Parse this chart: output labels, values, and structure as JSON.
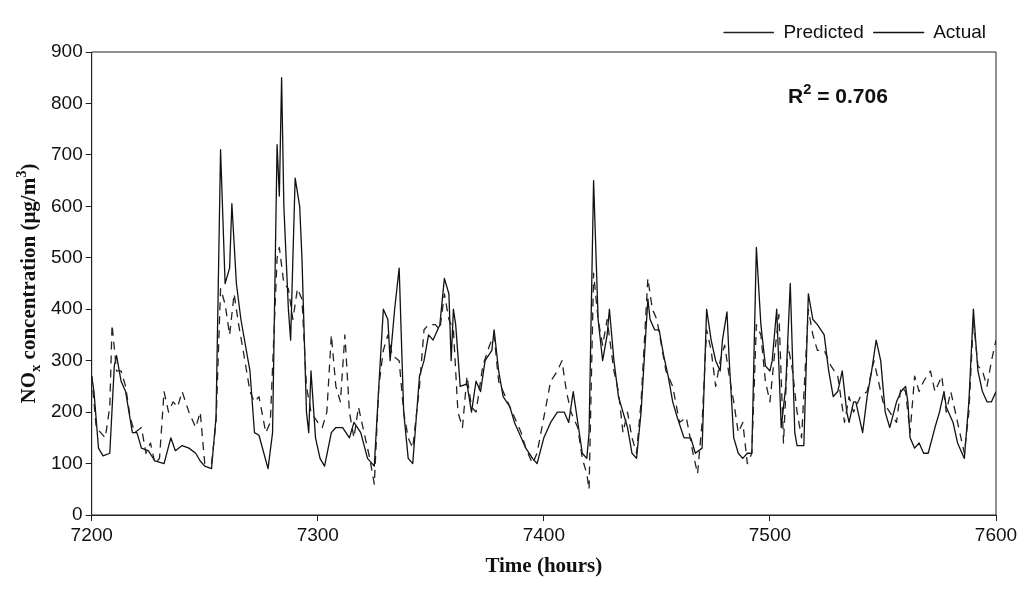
{
  "chart_data": {
    "type": "line",
    "xlabel": "Time (hours)",
    "ylabel": "NO$_{x}$ concentration (μg/m$^{3}$)",
    "xlim": [
      7200,
      7600
    ],
    "xticks": [
      7200,
      7300,
      7400,
      7500,
      7600
    ],
    "ylim": [
      0,
      900
    ],
    "yticks": [
      0,
      100,
      200,
      300,
      400,
      500,
      600,
      700,
      800,
      900
    ],
    "grid": false,
    "legend": "top right",
    "annotations": [
      "R$^{2}$ = 0.706"
    ],
    "series": [
      {
        "name": "Predicted",
        "color": "#222222",
        "line_style": "dashed",
        "x": [
          7200,
          7202,
          7204,
          7206,
          7208,
          7209,
          7211,
          7213,
          7215,
          7217,
          7219,
          7222,
          7224,
          7226,
          7228,
          7230,
          7232,
          7234,
          7236,
          7238,
          7240,
          7243,
          7246,
          7248,
          7250,
          7253,
          7255,
          7257,
          7259,
          7261,
          7263,
          7265,
          7267,
          7270,
          7272,
          7274,
          7277,
          7279,
          7282,
          7283,
          7285,
          7287,
          7289,
          7291,
          7293,
          7295,
          7297,
          7300,
          7302,
          7304,
          7306,
          7308,
          7310,
          7312,
          7314,
          7316,
          7318,
          7320,
          7323,
          7325,
          7327,
          7329,
          7331,
          7333,
          7336,
          7338,
          7340,
          7342,
          7345,
          7347,
          7349,
          7352,
          7354,
          7356,
          7358,
          7360,
          7362,
          7364,
          7366,
          7368,
          7370,
          7373,
          7376,
          7378,
          7380,
          7383,
          7386,
          7388,
          7390,
          7392,
          7395,
          7397,
          7400,
          7403,
          7406,
          7408,
          7410,
          7412,
          7415,
          7417,
          7419,
          7420,
          7422,
          7424,
          7426,
          7428,
          7431,
          7433,
          7435,
          7437,
          7439,
          7441,
          7443,
          7446,
          7448,
          7450,
          7452,
          7454,
          7457,
          7460,
          7463,
          7466,
          7468,
          7470,
          7472,
          7474,
          7476,
          7478,
          7480,
          7482,
          7484,
          7486,
          7488,
          7490,
          7492,
          7494,
          7496,
          7498,
          7500,
          7502,
          7504,
          7506,
          7508,
          7510,
          7512,
          7514,
          7517,
          7519,
          7521,
          7524,
          7527,
          7530,
          7533,
          7535,
          7537,
          7540,
          7543,
          7546,
          7548,
          7550,
          7553,
          7556,
          7558,
          7560,
          7562,
          7564,
          7566,
          7568,
          7571,
          7573,
          7576,
          7578,
          7580,
          7583,
          7586,
          7588,
          7590,
          7592,
          7594,
          7596,
          7598,
          7600
        ],
        "values": [
          270,
          170,
          160,
          150,
          210,
          370,
          280,
          280,
          250,
          190,
          160,
          170,
          120,
          140,
          100,
          110,
          240,
          200,
          220,
          210,
          240,
          200,
          170,
          200,
          100,
          100,
          180,
          440,
          410,
          350,
          430,
          370,
          320,
          240,
          220,
          230,
          160,
          180,
          500,
          520,
          450,
          440,
          380,
          440,
          420,
          250,
          200,
          180,
          170,
          200,
          350,
          250,
          220,
          350,
          200,
          150,
          210,
          170,
          110,
          60,
          250,
          320,
          350,
          310,
          300,
          200,
          150,
          130,
          250,
          360,
          370,
          370,
          360,
          430,
          380,
          360,
          200,
          170,
          270,
          210,
          200,
          290,
          330,
          350,
          260,
          230,
          200,
          180,
          160,
          130,
          100,
          120,
          190,
          260,
          280,
          300,
          240,
          200,
          170,
          110,
          80,
          50,
          470,
          380,
          330,
          380,
          280,
          240,
          160,
          200,
          150,
          120,
          220,
          460,
          400,
          380,
          330,
          280,
          250,
          180,
          190,
          120,
          80,
          180,
          360,
          320,
          250,
          300,
          330,
          270,
          220,
          160,
          180,
          100,
          120,
          370,
          350,
          260,
          220,
          310,
          390,
          140,
          330,
          280,
          200,
          150,
          400,
          350,
          320,
          320,
          290,
          270,
          180,
          230,
          200,
          230,
          240,
          300,
          260,
          220,
          200,
          180,
          250,
          240,
          160,
          270,
          240,
          260,
          280,
          240,
          270,
          200,
          240,
          180,
          120,
          200,
          380,
          290,
          280,
          250,
          300,
          340
        ]
      },
      {
        "name": "Actual",
        "color": "#111111",
        "line_style": "solid",
        "x": [
          7200,
          7201,
          7203,
          7205,
          7208,
          7210,
          7211,
          7213,
          7215,
          7218,
          7220,
          7222,
          7225,
          7228,
          7232,
          7235,
          7237,
          7240,
          7243,
          7246,
          7248,
          7250,
          7253,
          7255,
          7257,
          7259,
          7261,
          7262,
          7264,
          7266,
          7270,
          7272,
          7274,
          7278,
          7280,
          7282,
          7283,
          7284,
          7285,
          7287,
          7288,
          7289,
          7290,
          7292,
          7293,
          7295,
          7296,
          7297,
          7299,
          7301,
          7303,
          7306,
          7308,
          7311,
          7314,
          7316,
          7319,
          7322,
          7325,
          7327,
          7329,
          7331,
          7332,
          7334,
          7336,
          7338,
          7340,
          7342,
          7345,
          7347,
          7349,
          7351,
          7354,
          7356,
          7358,
          7359,
          7360,
          7361,
          7363,
          7366,
          7368,
          7370,
          7372,
          7374,
          7377,
          7378,
          7380,
          7382,
          7385,
          7387,
          7390,
          7392,
          7395,
          7397,
          7400,
          7403,
          7406,
          7409,
          7411,
          7413,
          7415,
          7417,
          7419,
          7420,
          7422,
          7424,
          7426,
          7428,
          7429,
          7431,
          7433,
          7435,
          7437,
          7439,
          7441,
          7443,
          7446,
          7447,
          7449,
          7451,
          7453,
          7455,
          7457,
          7459,
          7462,
          7465,
          7467,
          7470,
          7472,
          7474,
          7476,
          7478,
          7479,
          7481,
          7482,
          7484,
          7486,
          7488,
          7490,
          7492,
          7494,
          7496,
          7498,
          7500,
          7501,
          7503,
          7505,
          7507,
          7509,
          7511,
          7512,
          7515,
          7517,
          7519,
          7521,
          7524,
          7526,
          7528,
          7530,
          7532,
          7534,
          7535,
          7537,
          7538,
          7541,
          7543,
          7545,
          7547,
          7549,
          7551,
          7553,
          7556,
          7558,
          7560,
          7561,
          7562,
          7564,
          7566,
          7568,
          7570,
          7573,
          7575,
          7577,
          7578,
          7581,
          7583,
          7586,
          7588,
          7590,
          7592,
          7594,
          7596,
          7598,
          7600
        ],
        "values": [
          270,
          240,
          130,
          115,
          120,
          290,
          310,
          260,
          240,
          160,
          160,
          130,
          125,
          105,
          100,
          150,
          125,
          135,
          130,
          120,
          105,
          95,
          90,
          190,
          710,
          450,
          480,
          605,
          450,
          380,
          280,
          160,
          155,
          90,
          160,
          720,
          620,
          850,
          600,
          400,
          340,
          500,
          655,
          600,
          500,
          200,
          160,
          280,
          150,
          110,
          95,
          160,
          170,
          170,
          150,
          180,
          160,
          110,
          95,
          250,
          400,
          380,
          300,
          400,
          480,
          200,
          110,
          100,
          270,
          300,
          350,
          340,
          370,
          460,
          430,
          300,
          400,
          370,
          250,
          255,
          200,
          260,
          240,
          300,
          320,
          360,
          280,
          230,
          210,
          180,
          150,
          130,
          110,
          100,
          150,
          180,
          200,
          200,
          180,
          240,
          180,
          120,
          110,
          160,
          650,
          380,
          300,
          350,
          400,
          300,
          230,
          200,
          170,
          120,
          110,
          200,
          420,
          380,
          360,
          360,
          310,
          270,
          220,
          190,
          150,
          150,
          120,
          130,
          400,
          340,
          300,
          280,
          340,
          395,
          300,
          150,
          120,
          110,
          120,
          120,
          520,
          370,
          290,
          280,
          300,
          400,
          170,
          250,
          450,
          160,
          135,
          135,
          430,
          380,
          370,
          350,
          280,
          230,
          240,
          280,
          200,
          180,
          220,
          220,
          160,
          230,
          280,
          340,
          300,
          200,
          170,
          220,
          240,
          250,
          220,
          150,
          130,
          140,
          120,
          120,
          170,
          200,
          240,
          210,
          180,
          140,
          110,
          220,
          400,
          280,
          240,
          220,
          220,
          240
        ]
      }
    ]
  }
}
